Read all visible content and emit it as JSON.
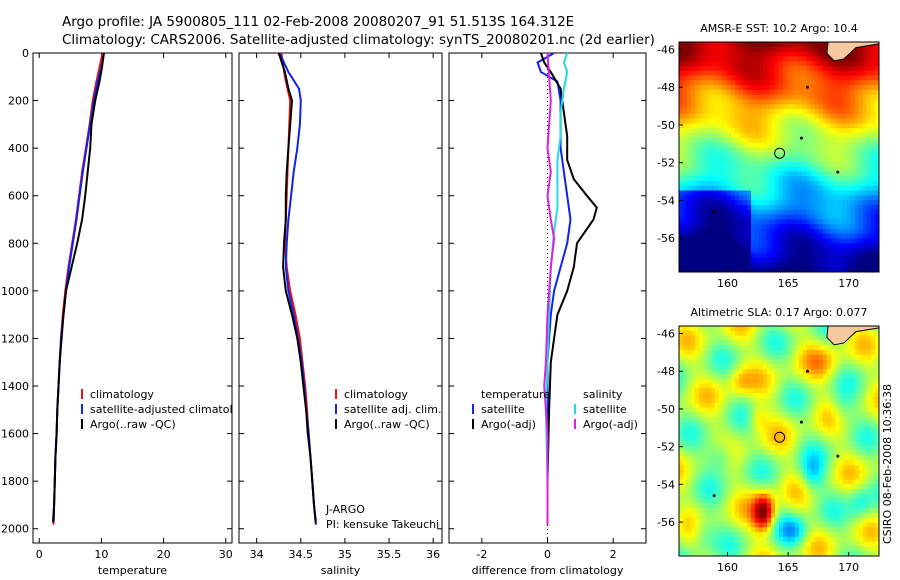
{
  "header": {
    "line1": "Argo profile: JA 5900805_111 02-Feb-2008 20080207_91 51.513S 164.312E",
    "line2": "Climatology: CARS2006. Satellite-adjusted climatology: synTS_20080201.nc (2d earlier)"
  },
  "side_stamp": "CSIRO 08-Feb-2008 10:36:38",
  "colors": {
    "red": "#ee1111",
    "blue": "#1122ee",
    "black": "#000000",
    "cyan": "#22dddd",
    "magenta": "#dd22dd"
  },
  "chart_data": [
    {
      "type": "line",
      "xlabel": "temperature",
      "xlim": [
        -1,
        31
      ],
      "ylim": [
        0,
        2060
      ],
      "xticks": [
        0,
        10,
        20,
        30
      ],
      "yticks": [
        0,
        200,
        400,
        600,
        800,
        1000,
        1200,
        1400,
        1600,
        1800,
        2000
      ],
      "legend": {
        "position": "lower-right",
        "entries": [
          "climatology",
          "satellite-adjusted climatology",
          "Argo(..raw -QC)"
        ]
      },
      "series": [
        {
          "name": "climatology",
          "color": "red",
          "points": [
            [
              10.2,
              0
            ],
            [
              9.7,
              60
            ],
            [
              9.2,
              120
            ],
            [
              8.6,
              200
            ],
            [
              8.1,
              300
            ],
            [
              7.5,
              400
            ],
            [
              6.9,
              500
            ],
            [
              6.4,
              600
            ],
            [
              5.9,
              700
            ],
            [
              5.3,
              800
            ],
            [
              4.7,
              900
            ],
            [
              4.2,
              1000
            ],
            [
              3.8,
              1100
            ],
            [
              3.5,
              1200
            ],
            [
              3.3,
              1300
            ],
            [
              3.1,
              1400
            ],
            [
              2.9,
              1500
            ],
            [
              2.8,
              1600
            ],
            [
              2.6,
              1700
            ],
            [
              2.5,
              1800
            ],
            [
              2.4,
              1900
            ],
            [
              2.3,
              1980
            ]
          ]
        },
        {
          "name": "satellite-adjusted climatology",
          "color": "blue",
          "points": [
            [
              10.4,
              0
            ],
            [
              10.0,
              60
            ],
            [
              9.4,
              120
            ],
            [
              8.8,
              200
            ],
            [
              8.2,
              300
            ],
            [
              7.6,
              400
            ],
            [
              7.0,
              500
            ],
            [
              6.5,
              600
            ],
            [
              6.0,
              700
            ],
            [
              5.4,
              800
            ],
            [
              4.8,
              900
            ],
            [
              4.3,
              1000
            ],
            [
              3.9,
              1100
            ],
            [
              3.5,
              1200
            ],
            [
              3.3,
              1300
            ],
            [
              3.1,
              1400
            ],
            [
              2.9,
              1500
            ],
            [
              2.8,
              1600
            ],
            [
              2.6,
              1700
            ],
            [
              2.5,
              1800
            ],
            [
              2.4,
              1900
            ],
            [
              2.2,
              1970
            ]
          ]
        },
        {
          "name": "Argo(..raw -QC)",
          "color": "black",
          "points": [
            [
              10.4,
              0
            ],
            [
              10.1,
              60
            ],
            [
              9.7,
              120
            ],
            [
              9.0,
              200
            ],
            [
              8.4,
              300
            ],
            [
              8.2,
              400
            ],
            [
              7.8,
              500
            ],
            [
              7.4,
              600
            ],
            [
              6.9,
              700
            ],
            [
              6.1,
              800
            ],
            [
              5.2,
              900
            ],
            [
              4.3,
              1000
            ],
            [
              3.9,
              1100
            ],
            [
              3.6,
              1200
            ],
            [
              3.3,
              1300
            ],
            [
              3.1,
              1400
            ],
            [
              2.9,
              1500
            ],
            [
              2.8,
              1600
            ],
            [
              2.6,
              1700
            ],
            [
              2.5,
              1800
            ],
            [
              2.4,
              1900
            ],
            [
              2.3,
              1970
            ]
          ]
        }
      ]
    },
    {
      "type": "line",
      "xlabel": "salinity",
      "xlim": [
        33.8,
        36.1
      ],
      "ylim": [
        0,
        2060
      ],
      "xticks": [
        34,
        34.5,
        35,
        35.5,
        36
      ],
      "yticks": [
        0,
        200,
        400,
        600,
        800,
        1000,
        1200,
        1400,
        1600,
        1800,
        2000
      ],
      "legend": {
        "position": "lower-right",
        "entries": [
          "climatology",
          "satellite adj. clim.",
          "Argo(..raw -QC)"
        ]
      },
      "annotation": {
        "line1": "J-ARGO",
        "line2": "PI: kensuke Takeuchi"
      },
      "series": [
        {
          "name": "climatology",
          "color": "red",
          "points": [
            [
              34.28,
              0
            ],
            [
              34.32,
              100
            ],
            [
              34.38,
              200
            ],
            [
              34.37,
              300
            ],
            [
              34.36,
              400
            ],
            [
              34.35,
              500
            ],
            [
              34.34,
              600
            ],
            [
              34.33,
              700
            ],
            [
              34.32,
              800
            ],
            [
              34.34,
              900
            ],
            [
              34.38,
              1000
            ],
            [
              34.44,
              1100
            ],
            [
              34.49,
              1200
            ],
            [
              34.52,
              1300
            ],
            [
              34.55,
              1400
            ],
            [
              34.57,
              1500
            ],
            [
              34.59,
              1600
            ],
            [
              34.61,
              1700
            ],
            [
              34.63,
              1800
            ],
            [
              34.65,
              1900
            ],
            [
              34.67,
              1980
            ]
          ]
        },
        {
          "name": "satellite adj. clim.",
          "color": "blue",
          "points": [
            [
              34.26,
              0
            ],
            [
              34.36,
              80
            ],
            [
              34.48,
              150
            ],
            [
              34.5,
              200
            ],
            [
              34.49,
              300
            ],
            [
              34.46,
              400
            ],
            [
              34.42,
              500
            ],
            [
              34.39,
              600
            ],
            [
              34.36,
              700
            ],
            [
              34.34,
              800
            ],
            [
              34.33,
              900
            ],
            [
              34.36,
              1000
            ],
            [
              34.42,
              1100
            ],
            [
              34.47,
              1200
            ],
            [
              34.51,
              1300
            ],
            [
              34.54,
              1400
            ],
            [
              34.56,
              1500
            ],
            [
              34.59,
              1600
            ],
            [
              34.61,
              1700
            ],
            [
              34.63,
              1800
            ],
            [
              34.65,
              1900
            ],
            [
              34.67,
              1980
            ]
          ]
        },
        {
          "name": "Argo(..raw -QC)",
          "color": "black",
          "points": [
            [
              34.25,
              0
            ],
            [
              34.32,
              80
            ],
            [
              34.36,
              150
            ],
            [
              34.4,
              200
            ],
            [
              34.38,
              300
            ],
            [
              34.36,
              400
            ],
            [
              34.34,
              500
            ],
            [
              34.33,
              600
            ],
            [
              34.33,
              700
            ],
            [
              34.31,
              800
            ],
            [
              34.3,
              900
            ],
            [
              34.33,
              1000
            ],
            [
              34.4,
              1100
            ],
            [
              34.46,
              1200
            ],
            [
              34.5,
              1300
            ],
            [
              34.53,
              1400
            ],
            [
              34.56,
              1500
            ],
            [
              34.58,
              1600
            ],
            [
              34.61,
              1700
            ],
            [
              34.63,
              1800
            ],
            [
              34.65,
              1900
            ],
            [
              34.67,
              1970
            ]
          ]
        }
      ]
    },
    {
      "type": "line",
      "xlabel": "difference from climatology",
      "xlim": [
        -3,
        3
      ],
      "ylim": [
        0,
        2060
      ],
      "xticks": [
        -2,
        0,
        2
      ],
      "yticks": [
        0,
        200,
        400,
        600,
        800,
        1000,
        1200,
        1400,
        1600,
        1800,
        2000
      ],
      "legend": {
        "position": "lower-right",
        "headers": [
          "temperature",
          "salinity"
        ],
        "entries": [
          "satellite",
          "Argo(-adj)",
          "satellite",
          "Argo(-adj)"
        ]
      },
      "series": [
        {
          "name": "satellite",
          "group": "temperature",
          "color": "blue",
          "points": [
            [
              0.2,
              0
            ],
            [
              -0.3,
              40
            ],
            [
              -0.2,
              80
            ],
            [
              0.3,
              120
            ],
            [
              0.4,
              200
            ],
            [
              0.4,
              300
            ],
            [
              0.4,
              400
            ],
            [
              0.5,
              500
            ],
            [
              0.6,
              600
            ],
            [
              0.7,
              700
            ],
            [
              0.6,
              800
            ],
            [
              0.4,
              900
            ],
            [
              0.2,
              1000
            ],
            [
              0.1,
              1100
            ],
            [
              0.05,
              1200
            ],
            [
              0.0,
              1300
            ],
            [
              0.0,
              1500
            ],
            [
              0.0,
              1800
            ],
            [
              0.0,
              1980
            ]
          ]
        },
        {
          "name": "Argo(-adj)",
          "group": "temperature",
          "color": "black",
          "points": [
            [
              -0.2,
              0
            ],
            [
              -0.1,
              40
            ],
            [
              0.1,
              80
            ],
            [
              0.4,
              150
            ],
            [
              0.5,
              250
            ],
            [
              0.6,
              350
            ],
            [
              0.6,
              450
            ],
            [
              0.8,
              530
            ],
            [
              1.2,
              600
            ],
            [
              1.5,
              650
            ],
            [
              1.4,
              700
            ],
            [
              0.9,
              800
            ],
            [
              0.8,
              900
            ],
            [
              0.6,
              1000
            ],
            [
              0.3,
              1100
            ],
            [
              0.2,
              1200
            ],
            [
              0.1,
              1300
            ],
            [
              0.05,
              1500
            ],
            [
              0.0,
              1800
            ],
            [
              0.0,
              1980
            ]
          ]
        },
        {
          "name": "satellite",
          "group": "salinity",
          "color": "cyan",
          "points": [
            [
              0.6,
              0
            ],
            [
              0.5,
              40
            ],
            [
              0.6,
              80
            ],
            [
              0.5,
              150
            ],
            [
              0.4,
              250
            ],
            [
              0.4,
              350
            ],
            [
              0.3,
              450
            ],
            [
              0.3,
              550
            ],
            [
              0.3,
              650
            ],
            [
              0.2,
              750
            ],
            [
              0.1,
              900
            ],
            [
              0.05,
              1100
            ],
            [
              0.0,
              1300
            ],
            [
              -0.05,
              1500
            ],
            [
              0.0,
              1800
            ],
            [
              0.0,
              1980
            ]
          ]
        },
        {
          "name": "Argo(-adj)",
          "group": "salinity",
          "color": "magenta",
          "points": [
            [
              0.0,
              0
            ],
            [
              0.05,
              100
            ],
            [
              0.1,
              200
            ],
            [
              0.05,
              300
            ],
            [
              0.0,
              400
            ],
            [
              0.1,
              500
            ],
            [
              0.0,
              600
            ],
            [
              0.1,
              700
            ],
            [
              0.2,
              780
            ],
            [
              0.1,
              900
            ],
            [
              0.0,
              1100
            ],
            [
              -0.05,
              1300
            ],
            [
              -0.1,
              1400
            ],
            [
              0.0,
              1600
            ],
            [
              0.0,
              1800
            ],
            [
              0.0,
              1980
            ]
          ]
        }
      ]
    }
  ],
  "maps": [
    {
      "title": "AMSR-E SST: 10.2 Argo: 10.4",
      "lon_range": [
        156,
        172.5
      ],
      "lat_range": [
        -57.8,
        -45.6
      ],
      "xticks": [
        160,
        165,
        170
      ],
      "yticks": [
        -46,
        -48,
        -50,
        -52,
        -54,
        -56
      ],
      "field": "sst",
      "profile_marker": {
        "lon": 164.3,
        "lat": -51.5
      }
    },
    {
      "title": "Altimetric SLA: 0.17 Argo: 0.077",
      "lon_range": [
        156,
        172.5
      ],
      "lat_range": [
        -57.8,
        -45.6
      ],
      "xticks": [
        160,
        165,
        170
      ],
      "yticks": [
        -46,
        -48,
        -50,
        -52,
        -54,
        -56
      ],
      "field": "sla",
      "profile_marker": {
        "lon": 164.3,
        "lat": -51.5
      }
    }
  ]
}
